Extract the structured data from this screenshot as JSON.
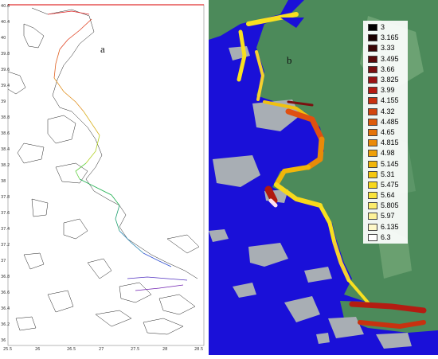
{
  "panel_a": {
    "letter": "a",
    "y_ticks": [
      "40.6",
      "40.4",
      "40",
      "39.8",
      "39.6",
      "39.4",
      "39",
      "38.8",
      "38.6",
      "38.4",
      "38.2",
      "38",
      "37.8",
      "37.6",
      "37.4",
      "37.2",
      "37",
      "36.8",
      "36.6",
      "36.4",
      "36.2",
      "36"
    ],
    "x_ticks": [
      "25.5",
      "26",
      "26.5",
      "27",
      "27.5",
      "28",
      "28.5"
    ],
    "track_colors": [
      "#e02020",
      "#e06020",
      "#e0a020",
      "#c8c820",
      "#60d040",
      "#20b050",
      "#20a070",
      "#2080b0",
      "#3050d0",
      "#5030c0",
      "#7020b0"
    ]
  },
  "panel_b": {
    "letter": "b",
    "sea_color": "#1a10d8",
    "land_color": "#4c8a5a",
    "legend": [
      {
        "label": "3",
        "color": "#000000"
      },
      {
        "label": "3.165",
        "color": "#1a0000"
      },
      {
        "label": "3.33",
        "color": "#3a0505"
      },
      {
        "label": "3.495",
        "color": "#5a0a0a"
      },
      {
        "label": "3.66",
        "color": "#7a1010"
      },
      {
        "label": "3.825",
        "color": "#9a1414"
      },
      {
        "label": "3.99",
        "color": "#b41c12"
      },
      {
        "label": "4.155",
        "color": "#c83210"
      },
      {
        "label": "4.32",
        "color": "#d2460e"
      },
      {
        "label": "4.485",
        "color": "#dc5c0c"
      },
      {
        "label": "4.65",
        "color": "#e4740a"
      },
      {
        "label": "4.815",
        "color": "#ea8a08"
      },
      {
        "label": "4.98",
        "color": "#eea008"
      },
      {
        "label": "5.145",
        "color": "#f2b60a"
      },
      {
        "label": "5.31",
        "color": "#f6c810"
      },
      {
        "label": "5.475",
        "color": "#f8d81c"
      },
      {
        "label": "5.64",
        "color": "#fae43c"
      },
      {
        "label": "5.805",
        "color": "#fcec6c"
      },
      {
        "label": "5.97",
        "color": "#fdf29a"
      },
      {
        "label": "6.135",
        "color": "#fef8c8"
      },
      {
        "label": "6.3",
        "color": "#ffffff"
      }
    ]
  }
}
